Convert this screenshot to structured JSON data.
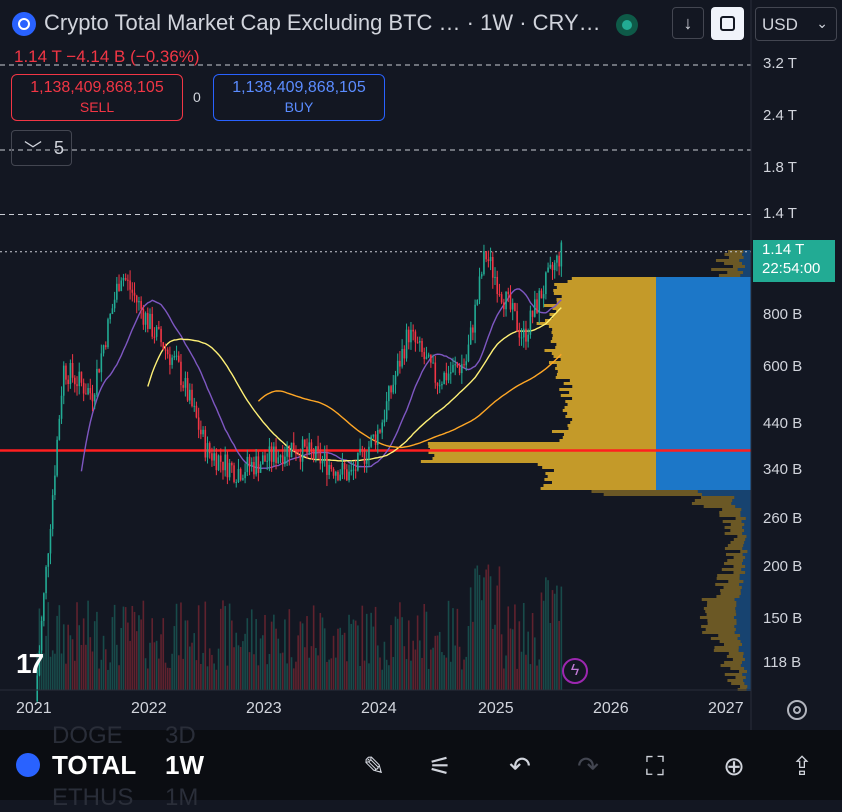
{
  "header": {
    "title": "Crypto Total Market Cap Excluding BTC … · 1W · CRY…",
    "currency": "USD",
    "change": "1.14 T  −4.14 B (−0.36%)"
  },
  "trade": {
    "sell_price": "1,138,409,868,105",
    "sell_label": "SELL",
    "buy_price": "1,138,409,868,105",
    "buy_label": "BUY",
    "spread": "0"
  },
  "indicators": {
    "count": "5"
  },
  "y_axis": {
    "labels": [
      "3.2 T",
      "2.4 T",
      "1.8 T",
      "1.4 T",
      "800 B",
      "600 B",
      "440 B",
      "340 B",
      "260 B",
      "200 B",
      "150 B",
      "118 B"
    ],
    "last_price": "1.14 T",
    "countdown": "22:54:00"
  },
  "x_axis": {
    "labels": [
      "2021",
      "2022",
      "2023",
      "2024",
      "2025",
      "2026",
      "2027"
    ]
  },
  "colors": {
    "background": "#131722",
    "bullish": "#22ab94",
    "bearish": "#f23645",
    "support_line": "#ff1f1f",
    "ma_purple": "#7e57c2",
    "ma_yellow": "#fff176",
    "ma_orange": "#ffa726",
    "volume_profile_gold": "#d8a92a",
    "volume_profile_blue": "#1e88e5"
  },
  "footer": {
    "symbol": "TOTAL",
    "interval": "1W",
    "ghost_symbol_above": "DOGE",
    "ghost_interval_above": "3D",
    "ghost_symbol_below": "ETHUS",
    "ghost_interval_below": "1M",
    "icons": [
      "pencil-icon",
      "sliders-icon",
      "undo-icon",
      "redo-icon",
      "fullscreen-icon",
      "idea-icon",
      "share-icon"
    ]
  },
  "chart_data": {
    "type": "candlestick",
    "interval": "1W",
    "x": [
      "2021-01",
      "2021-04",
      "2021-07",
      "2021-10",
      "2022-01",
      "2022-04",
      "2022-07",
      "2022-10",
      "2023-01",
      "2023-04",
      "2023-07",
      "2023-10",
      "2024-01",
      "2024-04",
      "2024-07",
      "2024-10",
      "2024-12",
      "2025-02",
      "2025-04",
      "2025-06",
      "2025-08"
    ],
    "close": [
      95,
      600,
      520,
      1020,
      760,
      600,
      380,
      340,
      360,
      390,
      360,
      330,
      430,
      730,
      560,
      620,
      1130,
      880,
      710,
      920,
      1140
    ],
    "y_scale": "log",
    "ylim": [
      100,
      3400
    ],
    "y_unit": "B",
    "last_price": "1.14 T",
    "horizontal_levels": [
      380,
      1400,
      2000,
      3200
    ],
    "moving_averages": [
      "purple",
      "yellow",
      "orange"
    ],
    "volume_profile": true
  }
}
